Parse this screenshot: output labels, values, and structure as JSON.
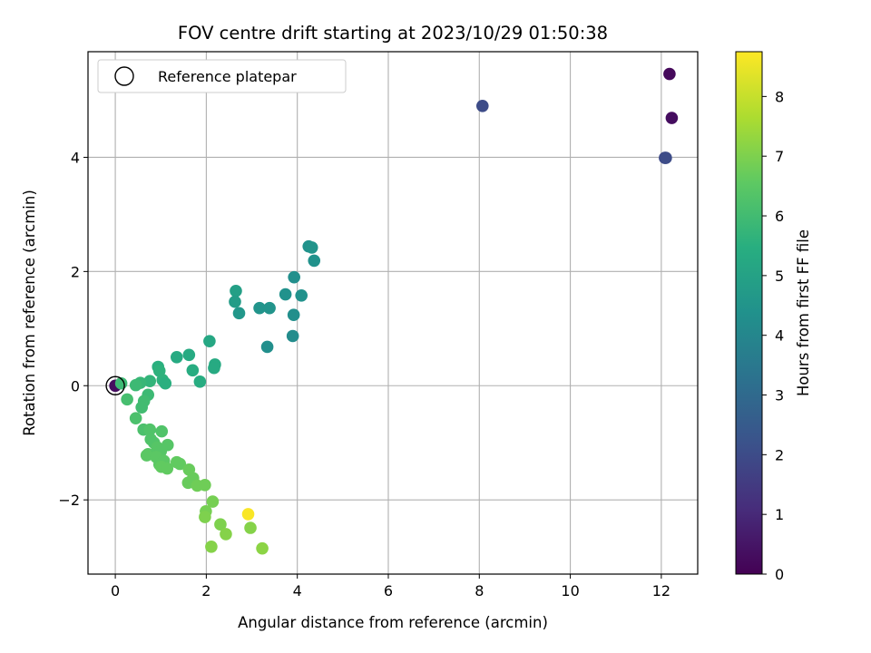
{
  "chart_data": {
    "type": "scatter",
    "title": "FOV centre drift starting at 2023/10/29 01:50:38",
    "xlabel": "Angular distance from reference (arcmin)",
    "ylabel": "Rotation from reference (arcmin)",
    "xlim": [
      -0.6,
      12.8
    ],
    "ylim": [
      -3.3,
      5.85
    ],
    "xticks": [
      "0",
      "2",
      "4",
      "6",
      "8",
      "10",
      "12"
    ],
    "xtick_values": [
      0,
      2,
      4,
      6,
      8,
      10,
      12
    ],
    "yticks": [
      "−2",
      "0",
      "2",
      "4"
    ],
    "ytick_values": [
      -2,
      0,
      2,
      4
    ],
    "grid": true,
    "legend": {
      "position": "top-left",
      "entries": [
        "Reference platepar"
      ]
    },
    "reference_point": {
      "x": 0,
      "y": 0
    },
    "colorbar": {
      "label": "Hours from first FF file",
      "range": [
        0,
        8.75
      ],
      "ticks": [
        "0",
        "1",
        "2",
        "3",
        "4",
        "5",
        "6",
        "7",
        "8"
      ],
      "tick_values": [
        0,
        1,
        2,
        3,
        4,
        5,
        6,
        7,
        8
      ],
      "colormap": "viridis"
    },
    "points": [
      {
        "x": 12.18,
        "y": 5.46,
        "c": 0.2
      },
      {
        "x": 12.23,
        "y": 4.69,
        "c": 0.3
      },
      {
        "x": 12.08,
        "y": 3.99,
        "c": 1.9
      },
      {
        "x": 12.1,
        "y": 3.99,
        "c": 2.0
      },
      {
        "x": 8.07,
        "y": 4.9,
        "c": 2.0
      },
      {
        "x": 0.0,
        "y": 0.0,
        "c": 0.3
      },
      {
        "x": 4.25,
        "y": 2.44,
        "c": 4.4
      },
      {
        "x": 4.32,
        "y": 2.42,
        "c": 4.5
      },
      {
        "x": 4.37,
        "y": 2.19,
        "c": 4.4
      },
      {
        "x": 3.93,
        "y": 1.9,
        "c": 4.3
      },
      {
        "x": 3.74,
        "y": 1.6,
        "c": 4.4
      },
      {
        "x": 4.09,
        "y": 1.58,
        "c": 4.4
      },
      {
        "x": 3.92,
        "y": 1.24,
        "c": 4.3
      },
      {
        "x": 3.9,
        "y": 0.87,
        "c": 4.2
      },
      {
        "x": 3.34,
        "y": 0.68,
        "c": 4.3
      },
      {
        "x": 3.17,
        "y": 1.36,
        "c": 4.5
      },
      {
        "x": 3.39,
        "y": 1.36,
        "c": 4.5
      },
      {
        "x": 2.65,
        "y": 1.66,
        "c": 4.9
      },
      {
        "x": 2.63,
        "y": 1.47,
        "c": 4.8
      },
      {
        "x": 2.72,
        "y": 1.27,
        "c": 4.6
      },
      {
        "x": 2.07,
        "y": 0.78,
        "c": 5.2
      },
      {
        "x": 2.19,
        "y": 0.37,
        "c": 5.3
      },
      {
        "x": 2.17,
        "y": 0.31,
        "c": 5.3
      },
      {
        "x": 1.35,
        "y": 0.5,
        "c": 5.3
      },
      {
        "x": 1.62,
        "y": 0.54,
        "c": 5.3
      },
      {
        "x": 1.7,
        "y": 0.27,
        "c": 5.4
      },
      {
        "x": 1.86,
        "y": 0.07,
        "c": 5.4
      },
      {
        "x": 0.94,
        "y": 0.33,
        "c": 5.5
      },
      {
        "x": 0.97,
        "y": 0.26,
        "c": 5.6
      },
      {
        "x": 1.04,
        "y": 0.1,
        "c": 5.6
      },
      {
        "x": 1.1,
        "y": 0.04,
        "c": 5.5
      },
      {
        "x": 0.76,
        "y": 0.08,
        "c": 5.7
      },
      {
        "x": 0.55,
        "y": 0.05,
        "c": 5.8
      },
      {
        "x": 0.45,
        "y": 0.01,
        "c": 5.9
      },
      {
        "x": 0.13,
        "y": 0.04,
        "c": 5.9
      },
      {
        "x": 0.72,
        "y": -0.16,
        "c": 5.9
      },
      {
        "x": 0.63,
        "y": -0.27,
        "c": 6.0
      },
      {
        "x": 0.58,
        "y": -0.38,
        "c": 6.0
      },
      {
        "x": 0.26,
        "y": -0.24,
        "c": 6.1
      },
      {
        "x": 0.45,
        "y": -0.57,
        "c": 6.2
      },
      {
        "x": 0.62,
        "y": -0.77,
        "c": 6.2
      },
      {
        "x": 0.76,
        "y": -0.77,
        "c": 6.3
      },
      {
        "x": 1.02,
        "y": -0.8,
        "c": 6.3
      },
      {
        "x": 0.78,
        "y": -0.94,
        "c": 6.3
      },
      {
        "x": 0.85,
        "y": -1.0,
        "c": 6.3
      },
      {
        "x": 0.92,
        "y": -1.08,
        "c": 6.4
      },
      {
        "x": 1.0,
        "y": -1.15,
        "c": 6.4
      },
      {
        "x": 1.15,
        "y": -1.04,
        "c": 6.4
      },
      {
        "x": 0.72,
        "y": -1.2,
        "c": 6.4
      },
      {
        "x": 0.69,
        "y": -1.22,
        "c": 6.5
      },
      {
        "x": 0.9,
        "y": -1.25,
        "c": 6.5
      },
      {
        "x": 1.07,
        "y": -1.32,
        "c": 6.5
      },
      {
        "x": 0.97,
        "y": -1.38,
        "c": 6.5
      },
      {
        "x": 1.01,
        "y": -1.42,
        "c": 6.6
      },
      {
        "x": 1.14,
        "y": -1.45,
        "c": 6.6
      },
      {
        "x": 1.35,
        "y": -1.34,
        "c": 6.6
      },
      {
        "x": 1.42,
        "y": -1.37,
        "c": 6.6
      },
      {
        "x": 1.62,
        "y": -1.47,
        "c": 6.7
      },
      {
        "x": 1.71,
        "y": -1.62,
        "c": 6.7
      },
      {
        "x": 1.6,
        "y": -1.7,
        "c": 6.7
      },
      {
        "x": 1.8,
        "y": -1.75,
        "c": 6.8
      },
      {
        "x": 1.97,
        "y": -1.74,
        "c": 6.8
      },
      {
        "x": 2.14,
        "y": -2.03,
        "c": 6.9
      },
      {
        "x": 1.99,
        "y": -2.2,
        "c": 6.9
      },
      {
        "x": 1.97,
        "y": -2.3,
        "c": 7.0
      },
      {
        "x": 2.31,
        "y": -2.43,
        "c": 7.0
      },
      {
        "x": 2.43,
        "y": -2.6,
        "c": 7.1
      },
      {
        "x": 2.11,
        "y": -2.82,
        "c": 7.1
      },
      {
        "x": 2.97,
        "y": -2.49,
        "c": 7.1
      },
      {
        "x": 3.23,
        "y": -2.85,
        "c": 7.2
      },
      {
        "x": 2.92,
        "y": -2.25,
        "c": 8.7
      }
    ]
  }
}
